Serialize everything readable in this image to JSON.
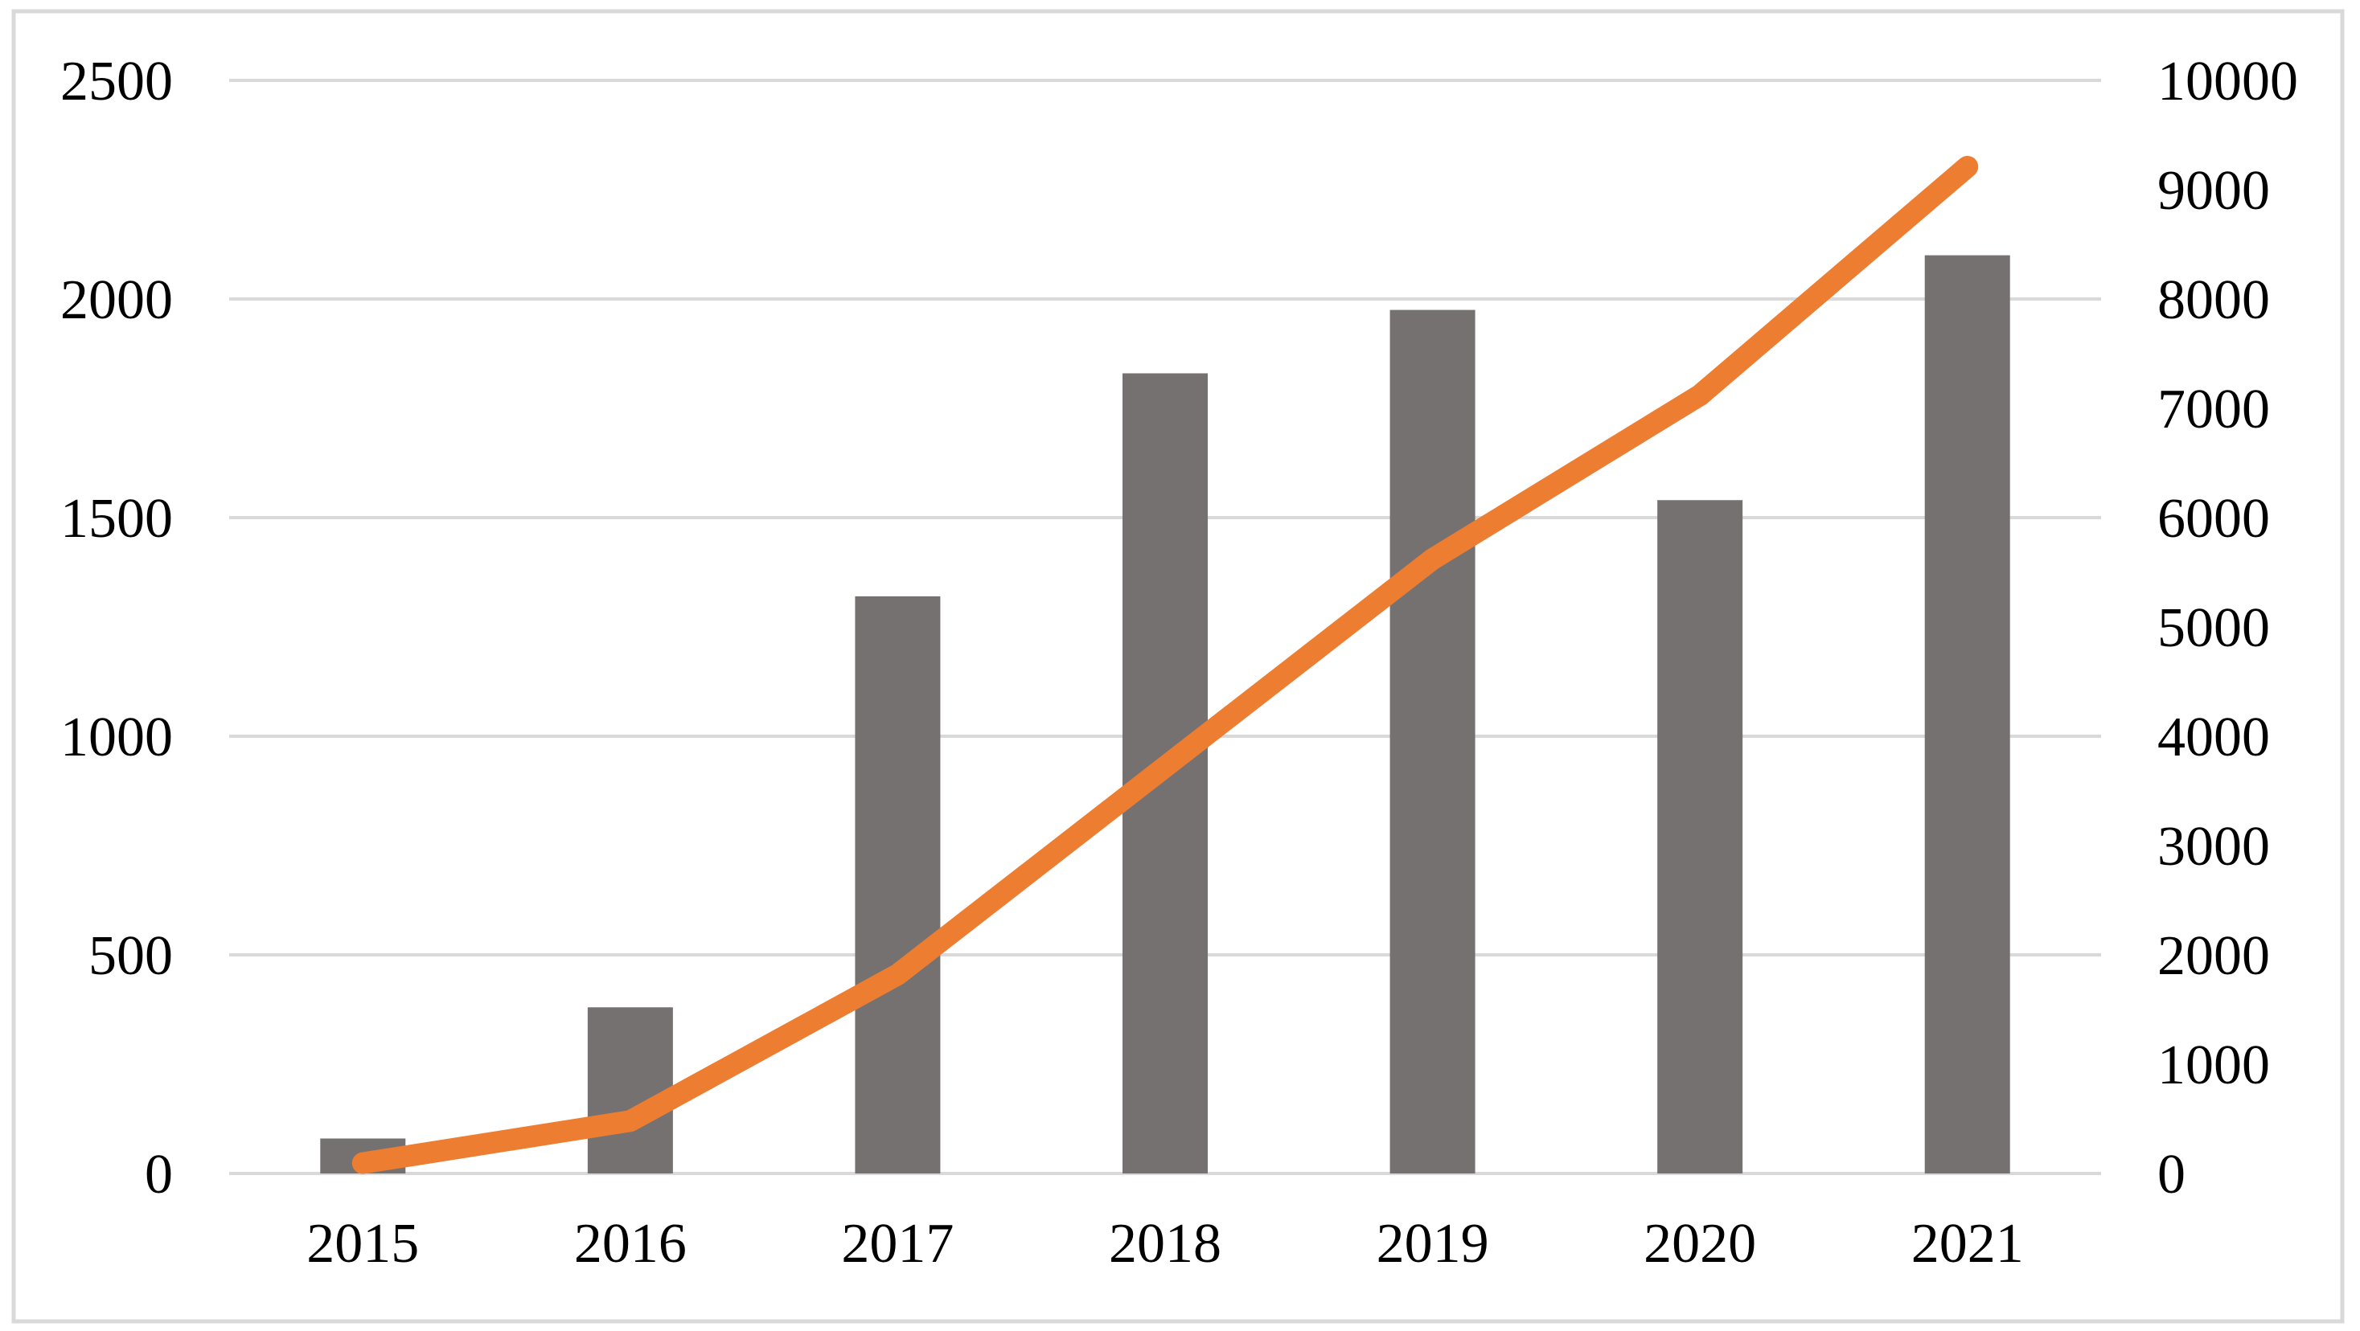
{
  "chart_data": {
    "type": "combo",
    "title": "",
    "xlabel": "",
    "ylabel_left": "",
    "ylabel_right": "",
    "categories": [
      "2015",
      "2016",
      "2017",
      "2018",
      "2019",
      "2020",
      "2021"
    ],
    "series": [
      {
        "name": "bar-series",
        "type": "bar",
        "axis": "left",
        "values": [
          80,
          380,
          1320,
          1830,
          1975,
          1540,
          2100
        ],
        "color": "#767171"
      },
      {
        "name": "line-series",
        "type": "line",
        "axis": "right",
        "values": [
          95,
          480,
          1820,
          3720,
          5620,
          7120,
          9210
        ],
        "color": "#ED7D31"
      }
    ],
    "left_axis": {
      "min": 0,
      "max": 2500,
      "step": 500,
      "tick_labels": [
        "0",
        "500",
        "1000",
        "1500",
        "2000",
        "2500"
      ]
    },
    "right_axis": {
      "min": 0,
      "max": 10000,
      "step": 1000,
      "tick_labels": [
        "0",
        "1000",
        "2000",
        "3000",
        "4000",
        "5000",
        "6000",
        "7000",
        "8000",
        "9000",
        "10000"
      ]
    },
    "grid": true,
    "legend": "none",
    "colors": {
      "gridline": "#D9D9D9",
      "frame_border": "#D9D9D9",
      "background": "#FFFFFF",
      "text": "#000000",
      "bar": "#767171",
      "line": "#ED7D31"
    }
  }
}
